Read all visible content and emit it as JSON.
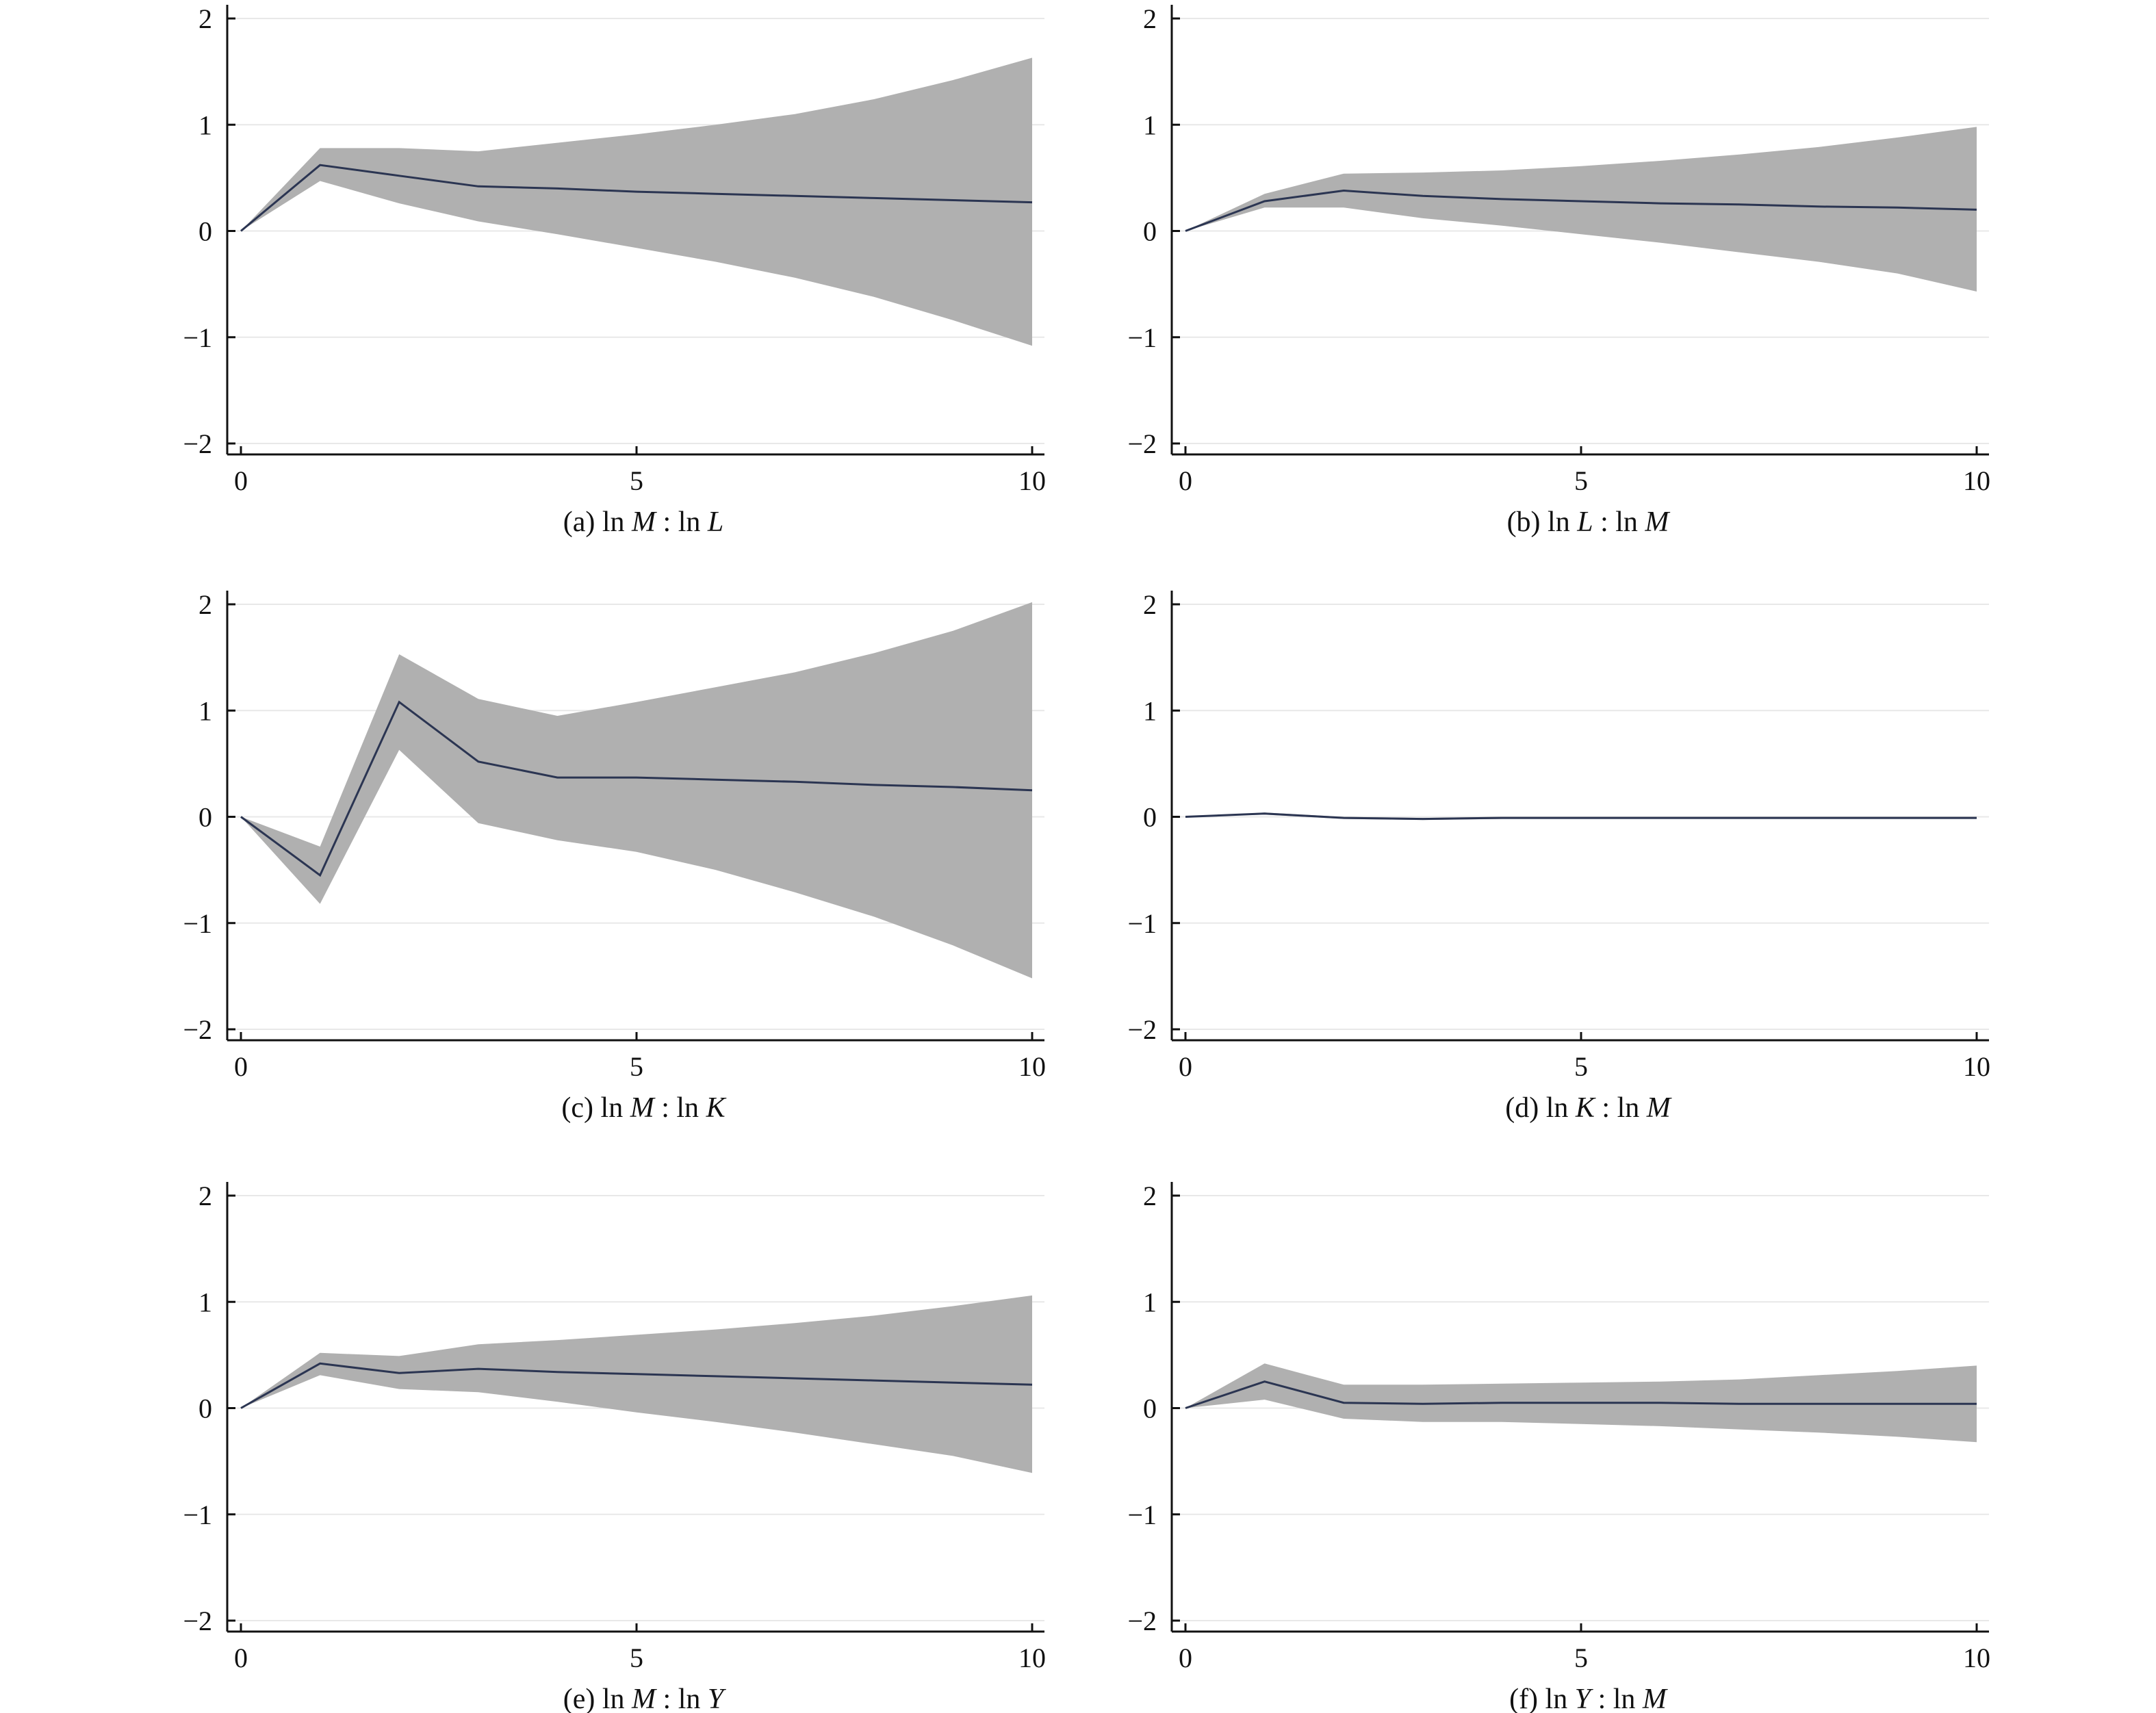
{
  "colors": {
    "band": "#b0b0b0",
    "line": "#2b3552",
    "axis": "#111111",
    "grid": "#e8e8e8"
  },
  "chart_data": [
    {
      "type": "area",
      "caption": {
        "prefix": "(a) ln ",
        "var1": "M",
        "sep": " : ln ",
        "var2": "L"
      },
      "x": [
        0,
        1,
        2,
        3,
        4,
        5,
        6,
        7,
        8,
        9,
        10
      ],
      "series": [
        {
          "role": "response",
          "values": [
            0,
            0.62,
            0.52,
            0.42,
            0.4,
            0.37,
            0.35,
            0.33,
            0.31,
            0.29,
            0.27
          ]
        },
        {
          "role": "lower",
          "values": [
            0,
            0.47,
            0.26,
            0.09,
            -0.03,
            -0.16,
            -0.29,
            -0.44,
            -0.62,
            -0.84,
            -1.08
          ]
        },
        {
          "role": "upper",
          "values": [
            0,
            0.78,
            0.78,
            0.75,
            0.83,
            0.91,
            1.0,
            1.1,
            1.24,
            1.42,
            1.63
          ]
        }
      ],
      "xlim": [
        0,
        10
      ],
      "ylim": [
        -2,
        2
      ],
      "xticks": [
        0,
        5,
        10
      ],
      "yticks": [
        2,
        1,
        0,
        -1,
        -2
      ],
      "grid": true
    },
    {
      "type": "area",
      "caption": {
        "prefix": "(b) ln ",
        "var1": "L",
        "sep": " : ln ",
        "var2": "M"
      },
      "x": [
        0,
        1,
        2,
        3,
        4,
        5,
        6,
        7,
        8,
        9,
        10
      ],
      "series": [
        {
          "role": "response",
          "values": [
            0,
            0.28,
            0.38,
            0.33,
            0.3,
            0.28,
            0.26,
            0.25,
            0.23,
            0.22,
            0.2
          ]
        },
        {
          "role": "lower",
          "values": [
            0,
            0.22,
            0.22,
            0.12,
            0.05,
            -0.03,
            -0.11,
            -0.2,
            -0.29,
            -0.4,
            -0.57
          ]
        },
        {
          "role": "upper",
          "values": [
            0,
            0.35,
            0.54,
            0.55,
            0.57,
            0.61,
            0.66,
            0.72,
            0.79,
            0.88,
            0.98
          ]
        }
      ],
      "xlim": [
        0,
        10
      ],
      "ylim": [
        -2,
        2
      ],
      "xticks": [
        0,
        5,
        10
      ],
      "yticks": [
        2,
        1,
        0,
        -1,
        -2
      ],
      "grid": true
    },
    {
      "type": "area",
      "caption": {
        "prefix": "(c) ln ",
        "var1": "M",
        "sep": " : ln ",
        "var2": "K"
      },
      "x": [
        0,
        1,
        2,
        3,
        4,
        5,
        6,
        7,
        8,
        9,
        10
      ],
      "series": [
        {
          "role": "response",
          "values": [
            0,
            -0.55,
            1.08,
            0.52,
            0.37,
            0.37,
            0.35,
            0.33,
            0.3,
            0.28,
            0.25
          ]
        },
        {
          "role": "lower",
          "values": [
            0,
            -0.82,
            0.63,
            -0.06,
            -0.22,
            -0.33,
            -0.5,
            -0.71,
            -0.94,
            -1.21,
            -1.52
          ]
        },
        {
          "role": "upper",
          "values": [
            0,
            -0.28,
            1.53,
            1.11,
            0.95,
            1.08,
            1.22,
            1.36,
            1.54,
            1.75,
            2.02
          ]
        }
      ],
      "xlim": [
        0,
        10
      ],
      "ylim": [
        -2,
        2
      ],
      "xticks": [
        0,
        5,
        10
      ],
      "yticks": [
        2,
        1,
        0,
        -1,
        -2
      ],
      "grid": true
    },
    {
      "type": "area",
      "caption": {
        "prefix": "(d) ln ",
        "var1": "K",
        "sep": " : ln ",
        "var2": "M"
      },
      "x": [
        0,
        1,
        2,
        3,
        4,
        5,
        6,
        7,
        8,
        9,
        10
      ],
      "series": [
        {
          "role": "response",
          "values": [
            0,
            0.03,
            -0.01,
            -0.02,
            -0.01,
            -0.01,
            -0.01,
            -0.01,
            -0.01,
            -0.01,
            -0.01
          ]
        },
        {
          "role": "lower",
          "values": [
            0,
            0.02,
            -0.02,
            -0.03,
            -0.02,
            -0.02,
            -0.02,
            -0.02,
            -0.02,
            -0.02,
            -0.02
          ]
        },
        {
          "role": "upper",
          "values": [
            0,
            0.04,
            0.0,
            -0.01,
            0.0,
            0.0,
            0.0,
            0.0,
            0.0,
            0.0,
            0.0
          ]
        }
      ],
      "xlim": [
        0,
        10
      ],
      "ylim": [
        -2,
        2
      ],
      "xticks": [
        0,
        5,
        10
      ],
      "yticks": [
        2,
        1,
        0,
        -1,
        -2
      ],
      "grid": true
    },
    {
      "type": "area",
      "caption": {
        "prefix": "(e) ln ",
        "var1": "M",
        "sep": " : ln ",
        "var2": "Y"
      },
      "x": [
        0,
        1,
        2,
        3,
        4,
        5,
        6,
        7,
        8,
        9,
        10
      ],
      "series": [
        {
          "role": "response",
          "values": [
            0,
            0.42,
            0.33,
            0.37,
            0.34,
            0.32,
            0.3,
            0.28,
            0.26,
            0.24,
            0.22
          ]
        },
        {
          "role": "lower",
          "values": [
            0,
            0.31,
            0.18,
            0.15,
            0.06,
            -0.04,
            -0.13,
            -0.23,
            -0.34,
            -0.45,
            -0.61
          ]
        },
        {
          "role": "upper",
          "values": [
            0,
            0.52,
            0.49,
            0.6,
            0.64,
            0.69,
            0.74,
            0.8,
            0.87,
            0.96,
            1.06
          ]
        }
      ],
      "xlim": [
        0,
        10
      ],
      "ylim": [
        -2,
        2
      ],
      "xticks": [
        0,
        5,
        10
      ],
      "yticks": [
        2,
        1,
        0,
        -1,
        -2
      ],
      "grid": true
    },
    {
      "type": "area",
      "caption": {
        "prefix": "(f) ln ",
        "var1": "Y",
        "sep": " : ln ",
        "var2": "M"
      },
      "x": [
        0,
        1,
        2,
        3,
        4,
        5,
        6,
        7,
        8,
        9,
        10
      ],
      "series": [
        {
          "role": "response",
          "values": [
            0,
            0.25,
            0.05,
            0.04,
            0.05,
            0.05,
            0.05,
            0.04,
            0.04,
            0.04,
            0.04
          ]
        },
        {
          "role": "lower",
          "values": [
            0,
            0.08,
            -0.1,
            -0.13,
            -0.13,
            -0.15,
            -0.17,
            -0.2,
            -0.23,
            -0.27,
            -0.32
          ]
        },
        {
          "role": "upper",
          "values": [
            0,
            0.42,
            0.22,
            0.22,
            0.23,
            0.24,
            0.25,
            0.27,
            0.31,
            0.35,
            0.4
          ]
        }
      ],
      "xlim": [
        0,
        10
      ],
      "ylim": [
        -2,
        2
      ],
      "xticks": [
        0,
        5,
        10
      ],
      "yticks": [
        2,
        1,
        0,
        -1,
        -2
      ],
      "grid": true
    }
  ]
}
